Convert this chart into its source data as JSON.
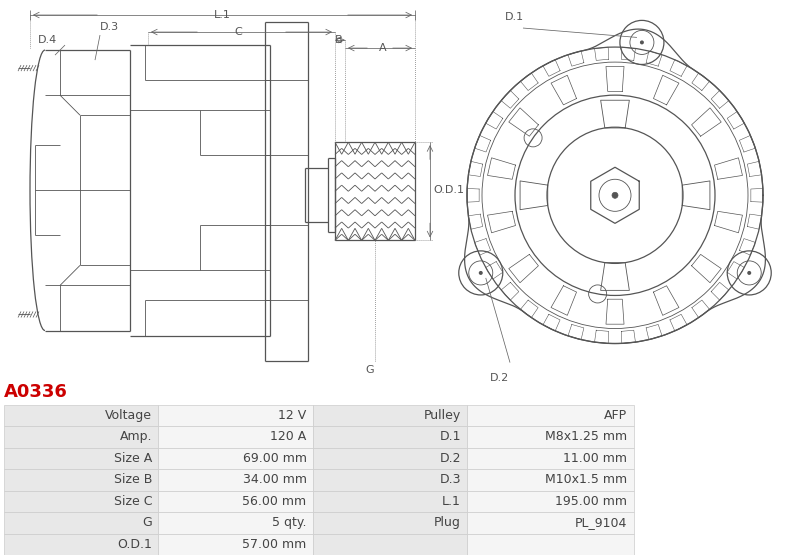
{
  "title": "A0336",
  "title_color": "#cc0000",
  "table_data": [
    [
      "Voltage",
      "12 V",
      "Pulley",
      "AFP"
    ],
    [
      "Amp.",
      "120 A",
      "D.1",
      "M8x1.25 mm"
    ],
    [
      "Size A",
      "69.00 mm",
      "D.2",
      "11.00 mm"
    ],
    [
      "Size B",
      "34.00 mm",
      "D.3",
      "M10x1.5 mm"
    ],
    [
      "Size C",
      "56.00 mm",
      "L.1",
      "195.00 mm"
    ],
    [
      "G",
      "5 qty.",
      "Plug",
      "PL_9104"
    ],
    [
      "O.D.1",
      "57.00 mm",
      "",
      ""
    ]
  ],
  "bg_color": "#ffffff",
  "cell_bg_label": "#e8e8e8",
  "cell_bg_value": "#f5f5f5",
  "border_color": "#cccccc",
  "text_color": "#444444",
  "font_size": 9
}
